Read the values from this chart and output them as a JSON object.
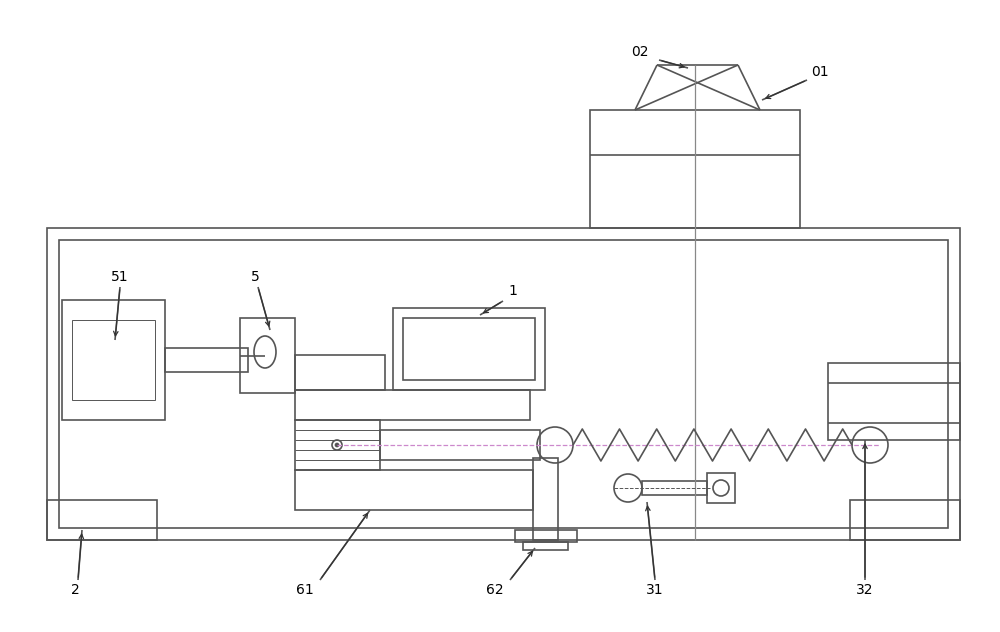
{
  "bg_color": "#ffffff",
  "lc": "#555555",
  "lw": 1.2,
  "fig_width": 10.0,
  "fig_height": 6.32,
  "dpi": 100
}
